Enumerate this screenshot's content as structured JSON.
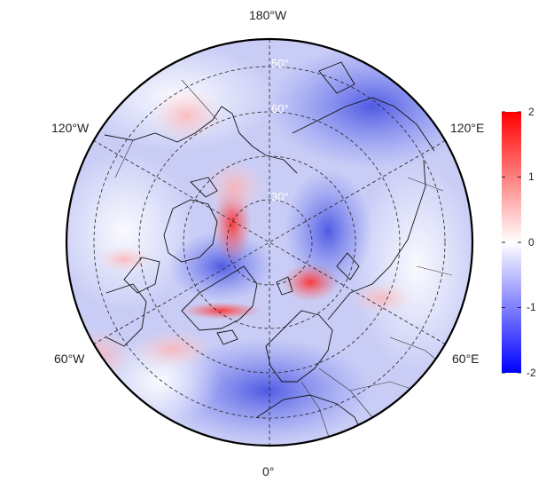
{
  "map": {
    "projection": "north-polar-stereographic",
    "longitude_labels": {
      "top": "180°W",
      "upper_left": "120°W",
      "upper_right": "120°E",
      "lower_left": "60°W",
      "lower_right": "60°E",
      "bottom": "0°"
    },
    "latitude_labels": [
      "30°",
      "60°",
      "50°"
    ],
    "features": [
      "coastlines",
      "country-borders",
      "graticule"
    ],
    "field_description_colors": {
      "positive": "#ff0000",
      "zero": "#ffffff",
      "negative": "#0000ff"
    }
  },
  "colorbar": {
    "min": -2,
    "max": 2,
    "ticks": [
      "2",
      "1",
      "0",
      "-1",
      "-2"
    ],
    "tick_values": [
      2,
      1,
      0,
      -1,
      -2
    ],
    "color_high": "#ff0000",
    "color_mid": "#ffffff",
    "color_low": "#0000ff"
  }
}
